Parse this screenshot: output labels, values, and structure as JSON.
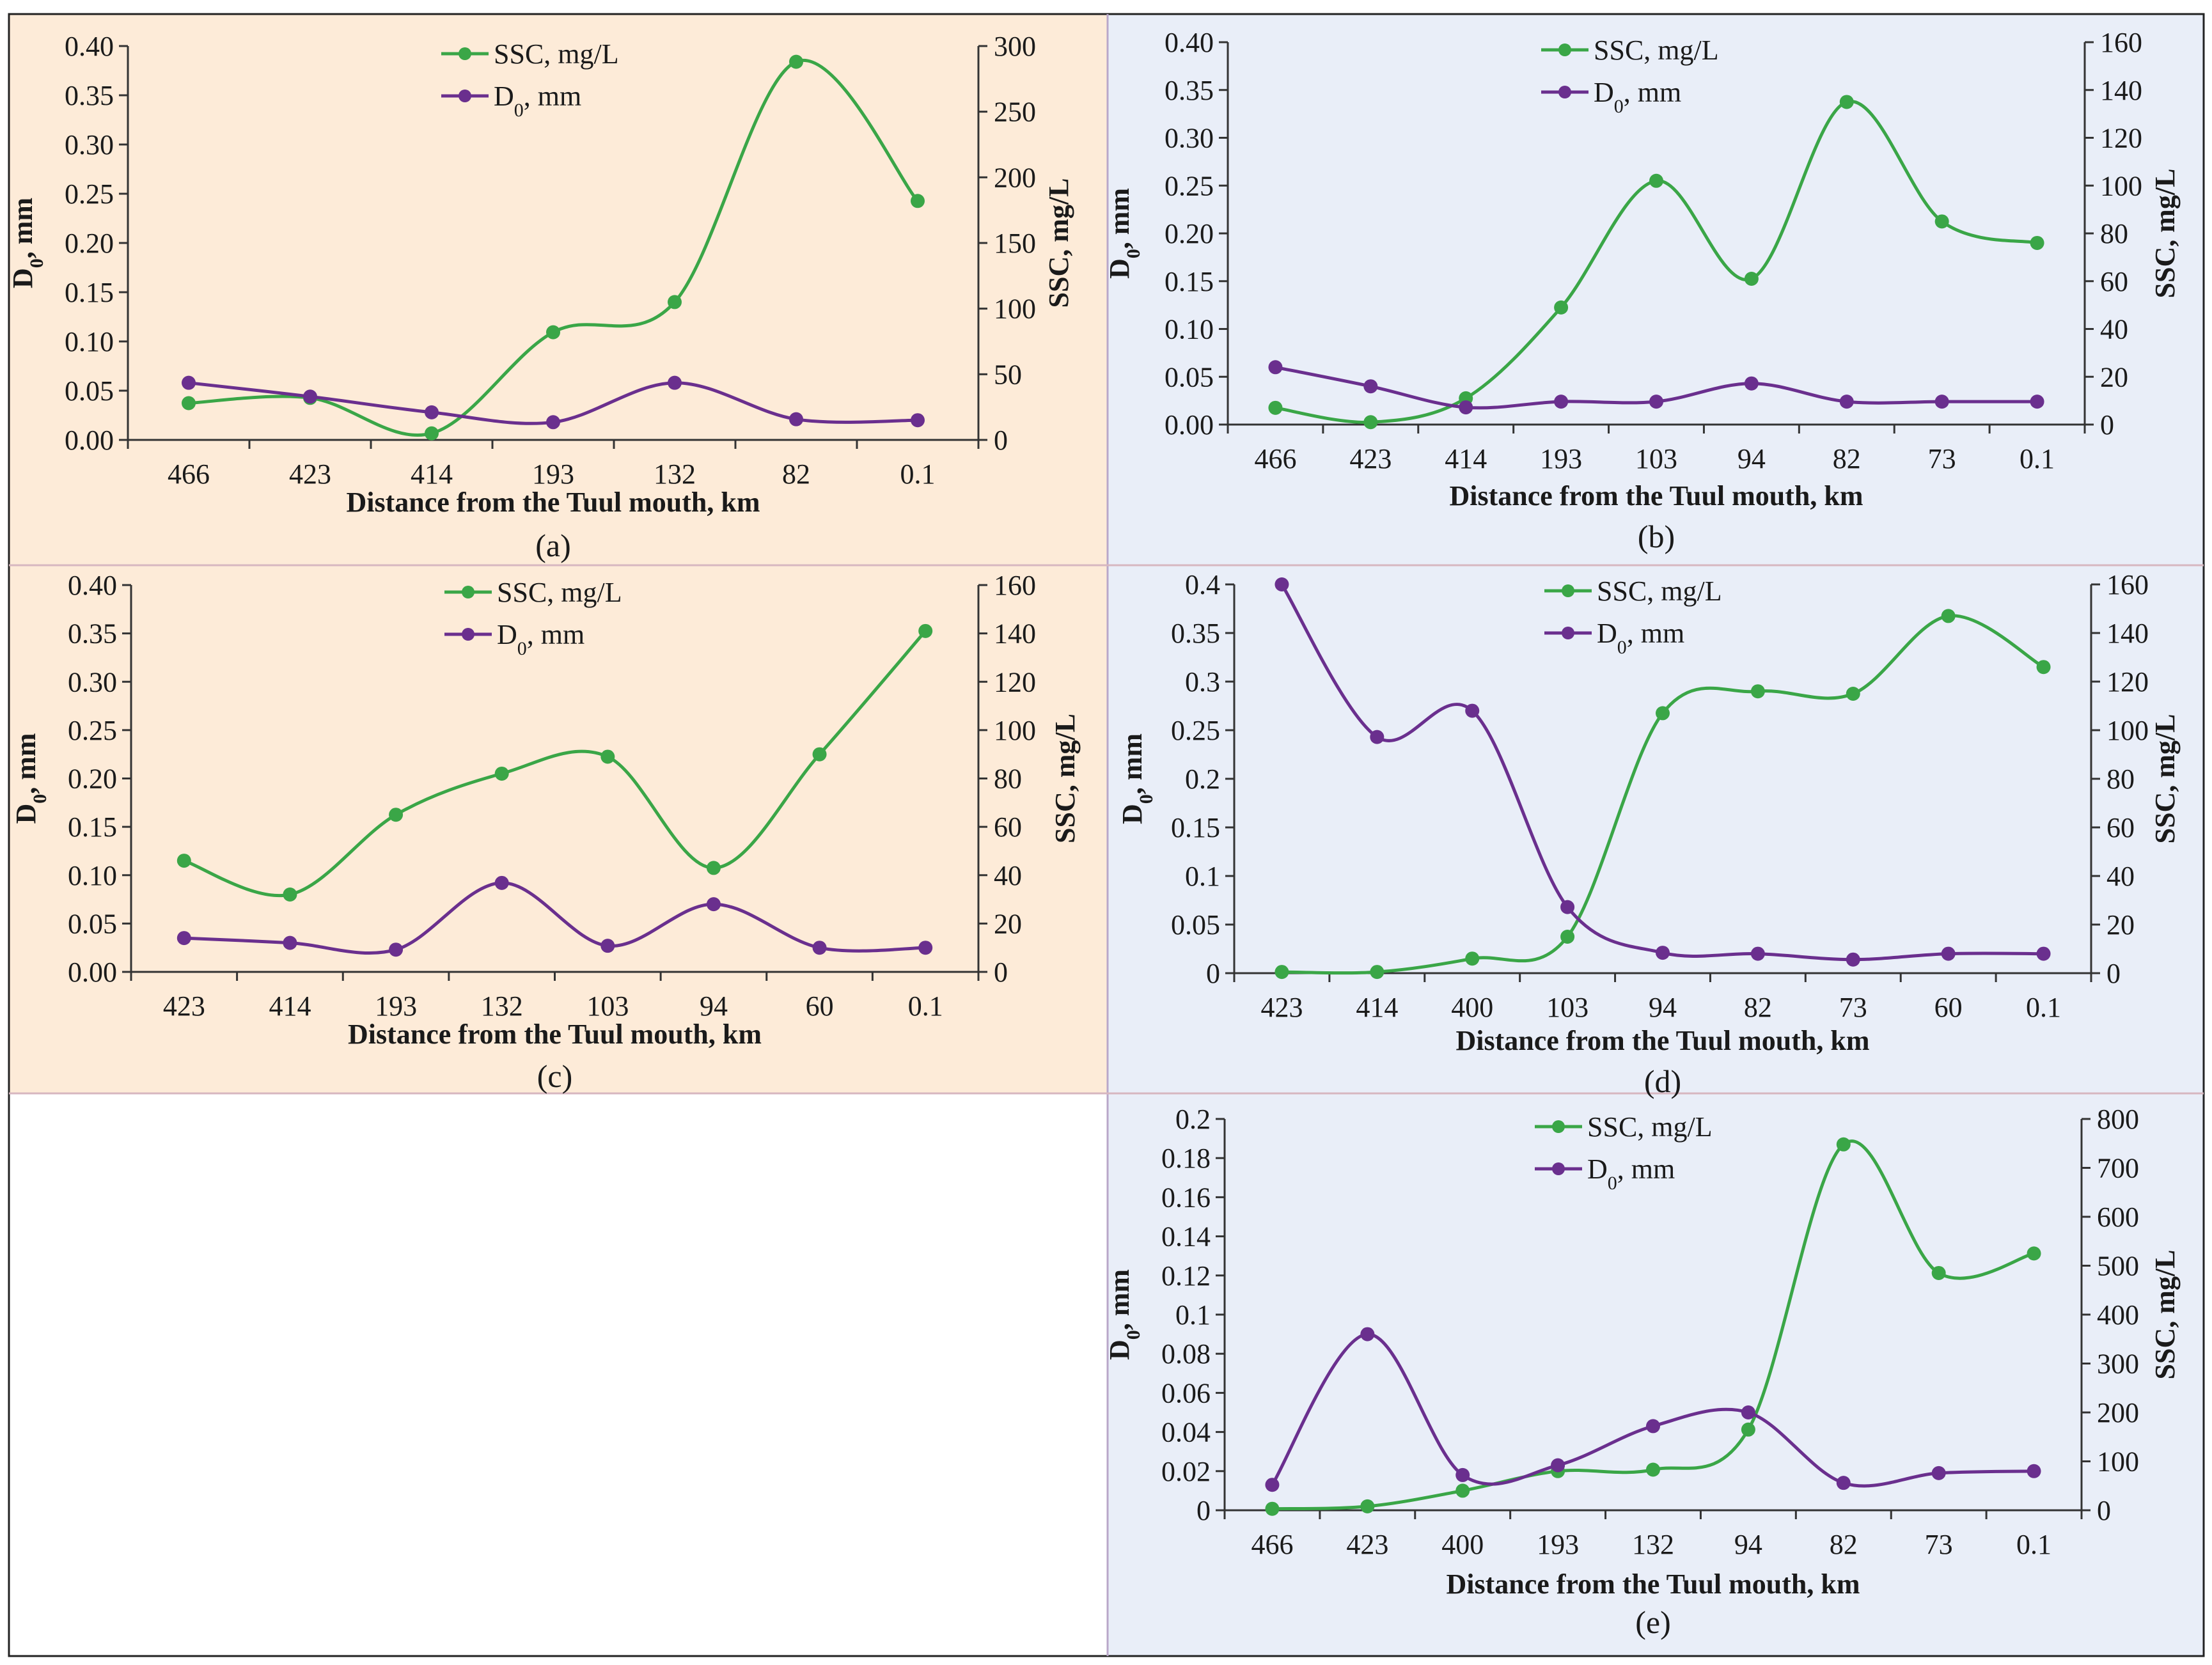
{
  "colors": {
    "ssc": "#3aa647",
    "d0": "#6a2f8e",
    "panel_a_bg": "#fdebd8",
    "panel_c_bg": "#fdebd8",
    "panel_b_bg": "#e9eef8",
    "panel_d_bg": "#e9eef8",
    "panel_e_bg": "#e9eef8",
    "axis": "#333333",
    "border": "#222222"
  },
  "chart_data": [
    {
      "type": "line",
      "panel": "(a)",
      "categories": [
        "466",
        "423",
        "414",
        "193",
        "132",
        "82",
        "0.1"
      ],
      "xlabel": "Distance from the Tuul  mouth, km",
      "ylabel_left": "D0, mm",
      "ylabel_right": "SSC, mg/L",
      "left_ticks": [
        "0.00",
        "0.05",
        "0.10",
        "0.15",
        "0.20",
        "0.25",
        "0.30",
        "0.35",
        "0.40"
      ],
      "right_ticks": [
        "0",
        "50",
        "100",
        "150",
        "200",
        "250",
        "300"
      ],
      "ylim_left": [
        0,
        0.4
      ],
      "ylim_right": [
        0,
        300
      ],
      "legend": [
        "SSC, mg/L",
        "D0, mm"
      ],
      "series": [
        {
          "name": "SSC, mg/L",
          "axis": "right",
          "values": [
            28,
            32,
            5,
            82,
            105,
            288,
            182
          ]
        },
        {
          "name": "D0, mm",
          "axis": "left",
          "values": [
            0.058,
            0.044,
            0.028,
            0.018,
            0.058,
            0.021,
            0.02
          ]
        }
      ]
    },
    {
      "type": "line",
      "panel": "(b)",
      "categories": [
        "466",
        "423",
        "414",
        "193",
        "103",
        "94",
        "82",
        "73",
        "0.1"
      ],
      "xlabel": "Distance from the Tuul  mouth, km",
      "ylabel_left": "D0, mm",
      "ylabel_right": "SSC, mg/L",
      "left_ticks": [
        "0.00",
        "0.05",
        "0.10",
        "0.15",
        "0.20",
        "0.25",
        "0.30",
        "0.35",
        "0.40"
      ],
      "right_ticks": [
        "0",
        "20",
        "40",
        "60",
        "80",
        "100",
        "120",
        "140",
        "160"
      ],
      "ylim_left": [
        0,
        0.4
      ],
      "ylim_right": [
        0,
        160
      ],
      "legend": [
        "SSC, mg/L",
        "D0, mm"
      ],
      "series": [
        {
          "name": "SSC, mg/L",
          "axis": "right",
          "values": [
            7,
            1,
            11,
            49,
            102,
            61,
            135,
            85,
            76
          ]
        },
        {
          "name": "D0, mm",
          "axis": "left",
          "values": [
            0.06,
            0.04,
            0.018,
            0.024,
            0.024,
            0.043,
            0.024,
            0.024,
            0.024
          ]
        }
      ]
    },
    {
      "type": "line",
      "panel": "(c)",
      "categories": [
        "423",
        "414",
        "193",
        "132",
        "103",
        "94",
        "60",
        "0.1"
      ],
      "xlabel": "Distance from the Tuul  mouth, km",
      "ylabel_left": "D0, mm",
      "ylabel_right": "SSC, mg/L",
      "left_ticks": [
        "0.00",
        "0.05",
        "0.10",
        "0.15",
        "0.20",
        "0.25",
        "0.30",
        "0.35",
        "0.40"
      ],
      "right_ticks": [
        "0",
        "20",
        "40",
        "60",
        "80",
        "100",
        "120",
        "140",
        "160"
      ],
      "ylim_left": [
        0,
        0.4
      ],
      "ylim_right": [
        0,
        160
      ],
      "legend": [
        "SSC, mg/L",
        "D0, mm"
      ],
      "series": [
        {
          "name": "SSC, mg/L",
          "axis": "right",
          "values": [
            46,
            32,
            65,
            82,
            89,
            43,
            90,
            141
          ]
        },
        {
          "name": "D0, mm",
          "axis": "left",
          "values": [
            0.035,
            0.03,
            0.023,
            0.092,
            0.027,
            0.07,
            0.025,
            0.025
          ]
        }
      ]
    },
    {
      "type": "line",
      "panel": "(d)",
      "categories": [
        "423",
        "414",
        "400",
        "103",
        "94",
        "82",
        "73",
        "60",
        "0.1"
      ],
      "xlabel": "Distance from the Tuul  mouth, km",
      "ylabel_left": "D0, mm",
      "ylabel_right": "SSC, mg/L",
      "left_ticks": [
        "0",
        "0.05",
        "0.1",
        "0.15",
        "0.2",
        "0.25",
        "0.3",
        "0.35",
        "0.4"
      ],
      "right_ticks": [
        "0",
        "20",
        "40",
        "60",
        "80",
        "100",
        "120",
        "140",
        "160"
      ],
      "ylim_left": [
        0,
        0.4
      ],
      "ylim_right": [
        0,
        160
      ],
      "legend": [
        "SSC, mg/L",
        "D0, mm"
      ],
      "series": [
        {
          "name": "SSC, mg/L",
          "axis": "right",
          "values": [
            0.5,
            0.5,
            6,
            15,
            107,
            116,
            115,
            147,
            126
          ]
        },
        {
          "name": "D0, mm",
          "axis": "left",
          "values": [
            0.4,
            0.243,
            0.27,
            0.068,
            0.021,
            0.02,
            0.014,
            0.02,
            0.02
          ]
        }
      ]
    },
    {
      "type": "line",
      "panel": "(e)",
      "categories": [
        "466",
        "423",
        "400",
        "193",
        "132",
        "94",
        "82",
        "73",
        "0.1"
      ],
      "xlabel": "Distance from the Tuul  mouth, km",
      "ylabel_left": "D0, mm",
      "ylabel_right": "SSC, mg/L",
      "left_ticks": [
        "0",
        "0.02",
        "0.04",
        "0.06",
        "0.08",
        "0.1",
        "0.12",
        "0.14",
        "0.16",
        "0.18",
        "0.2"
      ],
      "right_ticks": [
        "0",
        "100",
        "200",
        "300",
        "400",
        "500",
        "600",
        "700",
        "800"
      ],
      "ylim_left": [
        0,
        0.2
      ],
      "ylim_right": [
        0,
        800
      ],
      "legend": [
        "SSC, mg/L",
        "D0, mm"
      ],
      "series": [
        {
          "name": "SSC, mg/L",
          "axis": "right",
          "values": [
            3,
            8,
            40,
            80,
            83,
            165,
            748,
            485,
            525
          ]
        },
        {
          "name": "D0, mm",
          "axis": "left",
          "values": [
            0.013,
            0.09,
            0.018,
            0.023,
            0.043,
            0.05,
            0.014,
            0.019,
            0.02
          ]
        }
      ]
    }
  ]
}
